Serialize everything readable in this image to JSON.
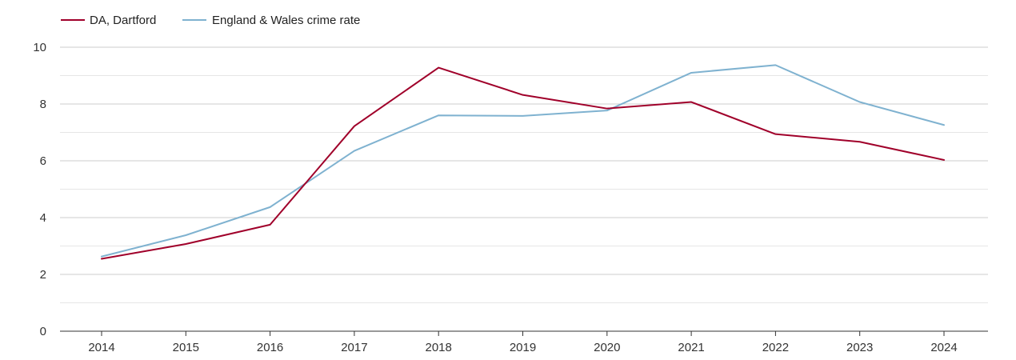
{
  "chart_data": {
    "type": "line",
    "title": "",
    "xlabel": "",
    "ylabel": "",
    "categories": [
      "2014",
      "2015",
      "2016",
      "2017",
      "2018",
      "2019",
      "2020",
      "2021",
      "2022",
      "2023",
      "2024"
    ],
    "ylim": [
      0,
      10
    ],
    "yticks": [
      "0",
      "2",
      "4",
      "6",
      "8",
      "10"
    ],
    "grid": true,
    "legend_position": "top-left",
    "series": [
      {
        "name": "DA, Dartford",
        "color": "#a0002a",
        "values": [
          2.55,
          3.07,
          3.75,
          7.22,
          9.28,
          8.32,
          7.84,
          8.07,
          6.94,
          6.67,
          6.03
        ]
      },
      {
        "name": "England & Wales crime rate",
        "color": "#7fb2d0",
        "values": [
          2.63,
          3.38,
          4.37,
          6.35,
          7.6,
          7.58,
          7.77,
          9.1,
          9.37,
          8.07,
          7.26
        ]
      }
    ]
  }
}
